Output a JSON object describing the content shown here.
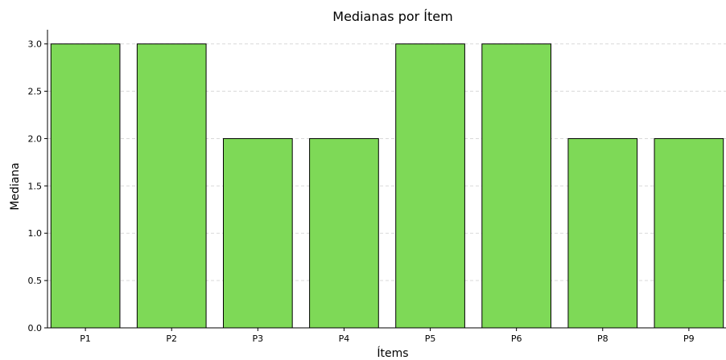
{
  "chart_data": {
    "type": "bar",
    "title": "Medianas por Ítem",
    "xlabel": "Ítems",
    "ylabel": "Mediana",
    "categories": [
      "P1",
      "P2",
      "P3",
      "P4",
      "P5",
      "P6",
      "P8",
      "P9"
    ],
    "values": [
      3.0,
      3.0,
      2.0,
      2.0,
      3.0,
      3.0,
      2.0,
      2.0
    ],
    "ylim": [
      0,
      3.15
    ],
    "yticks": [
      "0.0",
      "0.5",
      "1.0",
      "1.5",
      "2.0",
      "2.5",
      "3.0"
    ],
    "grid": "horizontal-dashed",
    "legend": "none",
    "colors": {
      "bar_fill": "#7ed957",
      "bar_edge": "#000000",
      "grid": "#d9d9d9"
    }
  }
}
